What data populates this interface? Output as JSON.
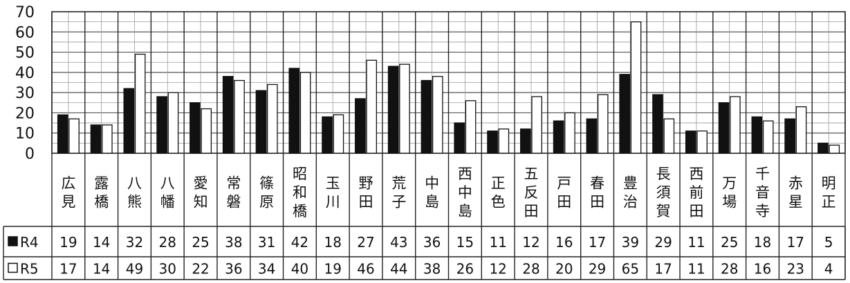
{
  "chart_data": {
    "type": "bar",
    "ylim": [
      0,
      70
    ],
    "yticks": [
      "0",
      "10",
      "20",
      "30",
      "40",
      "50",
      "60",
      "70"
    ],
    "grid": true,
    "categories": [
      "広見",
      "露橋",
      "八熊",
      "八幡",
      "愛知",
      "常磐",
      "篠原",
      "昭和橋",
      "玉川",
      "野田",
      "荒子",
      "中島",
      "西中島",
      "正色",
      "五反田",
      "戸田",
      "春田",
      "豊治",
      "長須賀",
      "西前田",
      "万場",
      "千音寺",
      "赤星",
      "明正"
    ],
    "series": [
      {
        "name": "R4",
        "color": "#111111",
        "values": [
          19,
          14,
          32,
          28,
          25,
          38,
          31,
          42,
          18,
          27,
          43,
          36,
          15,
          11,
          12,
          16,
          17,
          39,
          29,
          11,
          25,
          18,
          17,
          5
        ]
      },
      {
        "name": "R5",
        "color": "#ffffff",
        "values": [
          17,
          14,
          49,
          30,
          22,
          36,
          34,
          40,
          19,
          46,
          44,
          38,
          26,
          12,
          28,
          20,
          29,
          65,
          17,
          11,
          28,
          16,
          23,
          4
        ]
      }
    ]
  }
}
